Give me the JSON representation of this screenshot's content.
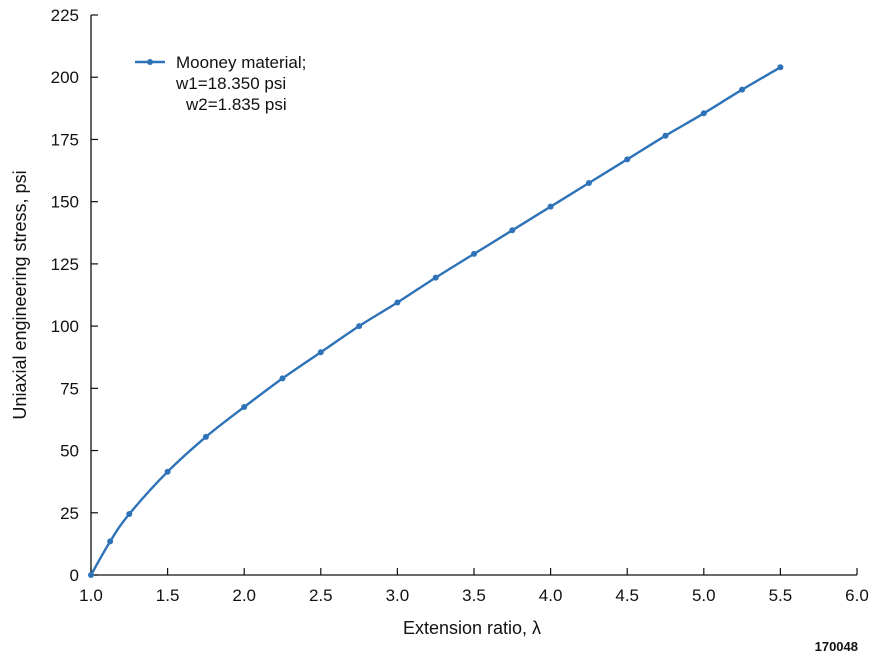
{
  "chart_data": {
    "type": "line",
    "xlabel": "Extension ratio, λ",
    "ylabel": "Uniaxial engineering stress, psi",
    "xlim": [
      1.0,
      6.0
    ],
    "ylim": [
      0,
      225
    ],
    "xticks": [
      "1.0",
      "1.5",
      "2.0",
      "2.5",
      "3.0",
      "3.5",
      "4.0",
      "4.5",
      "5.0",
      "5.5",
      "6.0"
    ],
    "yticks": [
      "0",
      "25",
      "50",
      "75",
      "100",
      "125",
      "150",
      "175",
      "200",
      "225"
    ],
    "grid": false,
    "legend": {
      "position": "top-left",
      "lines": [
        "Mooney material;",
        "w1=18.350 psi",
        "w2=1.835 psi"
      ]
    },
    "series": [
      {
        "name": "Mooney material; w1=18.350 psi w2=1.835 psi",
        "color": "#2e72b8",
        "x": [
          1.0,
          1.125,
          1.25,
          1.5,
          1.75,
          2.0,
          2.25,
          2.5,
          2.75,
          3.0,
          3.25,
          3.5,
          3.75,
          4.0,
          4.25,
          4.5,
          4.75,
          5.0,
          5.25,
          5.5
        ],
        "y": [
          0,
          13.5,
          24.5,
          41.5,
          55.5,
          67.5,
          79,
          89.5,
          100,
          109.5,
          119.5,
          129,
          138.5,
          148,
          157.5,
          167,
          176.5,
          185.5,
          195,
          204
        ]
      }
    ],
    "annotations": [
      "170048"
    ]
  }
}
